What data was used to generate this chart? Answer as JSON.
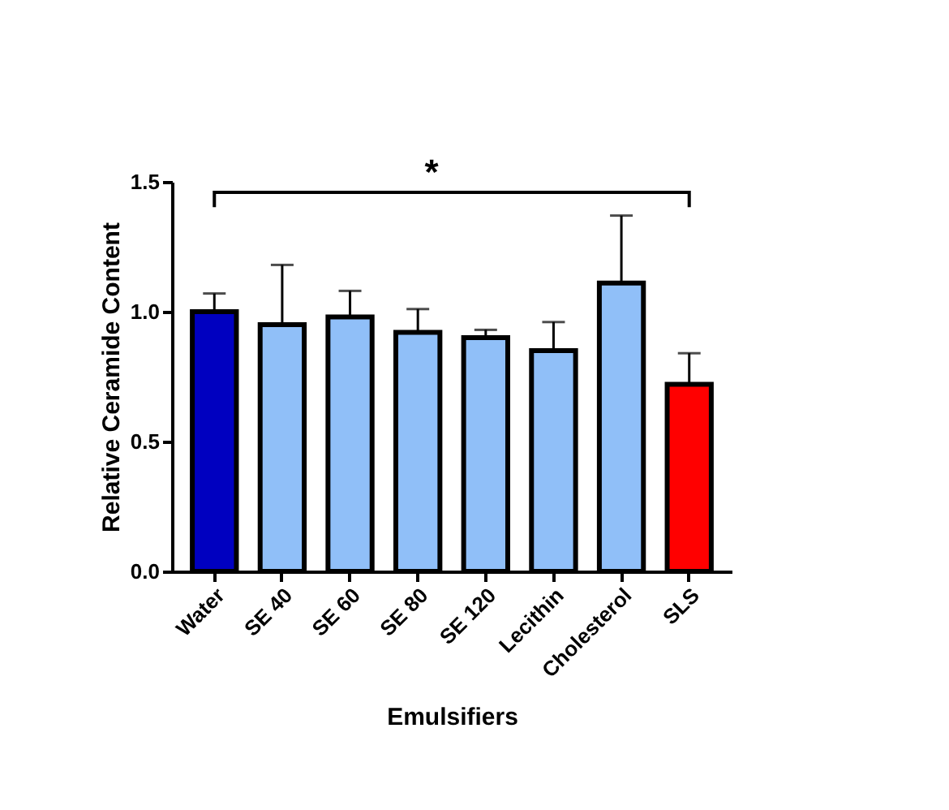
{
  "chart_data": {
    "type": "bar",
    "xlabel": "Emulsifiers",
    "ylabel": "Relative Ceramide Content",
    "categories": [
      "Water",
      "SE 40",
      "SE 60",
      "SE 80",
      "SE 120",
      "Lecithin",
      "Cholesterol",
      "SLS"
    ],
    "values": [
      1.0,
      0.95,
      0.98,
      0.92,
      0.9,
      0.85,
      1.11,
      0.72
    ],
    "colors": [
      "#0000c0",
      "#90bff8",
      "#90bff8",
      "#90bff8",
      "#90bff8",
      "#90bff8",
      "#90bff8",
      "#ff0000"
    ],
    "errors": [
      [
        1.0,
        1.07
      ],
      [
        0.95,
        1.18
      ],
      [
        0.98,
        1.08
      ],
      [
        0.92,
        1.01
      ],
      [
        0.9,
        0.93
      ],
      [
        0.85,
        0.96
      ],
      [
        1.11,
        1.37
      ],
      [
        0.72,
        0.84
      ]
    ],
    "ylim": [
      0,
      1.5
    ],
    "yticks": [
      {
        "value": 0,
        "label": "0.0"
      },
      0.5,
      {
        "value": 1,
        "label": "1.0"
      },
      1.5
    ],
    "grid": false,
    "annotations": [
      "*"
    ]
  }
}
